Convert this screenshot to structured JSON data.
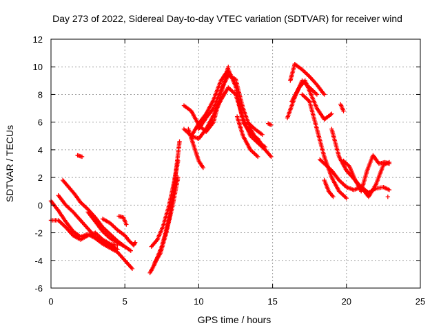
{
  "chart_data": {
    "type": "scatter",
    "title": "Day 273 of 2022, Sidereal Day-to-day VTEC variation (SDTVAR) for receiver wind",
    "xlabel": "GPS time / hours",
    "ylabel": "SDTVAR / TECUs",
    "xlim": [
      0,
      25
    ],
    "ylim": [
      -6,
      12
    ],
    "xticks": [
      0,
      5,
      10,
      15,
      20,
      25
    ],
    "yticks": [
      -6,
      -4,
      -2,
      0,
      2,
      4,
      6,
      8,
      10,
      12
    ],
    "grid": true,
    "marker": "+",
    "color": "#ff0000",
    "series": [
      {
        "name": "trace-1",
        "x": [
          0.0,
          0.5,
          1.0,
          1.5,
          2.0,
          2.5,
          3.0,
          3.5,
          4.0,
          4.5,
          5.0,
          5.5
        ],
        "y": [
          0.3,
          -0.4,
          -1.2,
          -1.9,
          -2.3,
          -2.1,
          -2.4,
          -2.8,
          -3.1,
          -3.4,
          -4.0,
          -4.6
        ]
      },
      {
        "name": "trace-2",
        "x": [
          0.0,
          0.5,
          1.0,
          1.5,
          2.0,
          2.5,
          3.0,
          3.5,
          4.0,
          4.5
        ],
        "y": [
          -1.1,
          -1.1,
          -1.6,
          -2.2,
          -2.5,
          -2.2,
          -2.0,
          -2.5,
          -2.8,
          -2.9
        ]
      },
      {
        "name": "trace-3",
        "x": [
          0.8,
          1.2,
          1.6,
          2.0,
          2.5,
          3.0,
          3.5,
          4.0,
          4.5,
          5.0,
          5.4
        ],
        "y": [
          1.8,
          1.3,
          0.8,
          0.2,
          -0.3,
          -0.9,
          -1.6,
          -2.1,
          -2.6,
          -3.0,
          -3.3
        ]
      },
      {
        "name": "trace-4",
        "x": [
          0.5,
          1.0,
          1.5,
          2.0,
          2.5,
          3.0,
          3.5,
          4.0,
          4.5
        ],
        "y": [
          0.7,
          0.0,
          -0.5,
          -1.1,
          -1.7,
          -2.3,
          -2.6,
          -2.9,
          -3.2
        ]
      },
      {
        "name": "trace-5",
        "x": [
          2.5,
          3.0,
          3.5,
          4.0,
          4.5,
          5.0
        ],
        "y": [
          -0.5,
          -1.2,
          -1.9,
          -2.4,
          -2.7,
          -3.0
        ]
      },
      {
        "name": "trace-6",
        "x": [
          3.5,
          4.0,
          4.5,
          5.0,
          5.3
        ],
        "y": [
          -1.0,
          -1.3,
          -1.8,
          -2.2,
          -2.6
        ]
      },
      {
        "name": "trace-7",
        "x": [
          4.6,
          4.9,
          5.1
        ],
        "y": [
          -0.8,
          -0.9,
          -1.4
        ]
      },
      {
        "name": "trace-8",
        "x": [
          1.8,
          2.1
        ],
        "y": [
          3.6,
          3.5
        ]
      },
      {
        "name": "trace-9",
        "x": [
          5.3,
          5.6,
          5.7
        ],
        "y": [
          -2.6,
          -2.9,
          -2.7
        ]
      },
      {
        "name": "trace-10",
        "x": [
          6.7,
          7.0,
          7.5,
          8.0,
          8.3,
          8.5,
          8.7
        ],
        "y": [
          -4.9,
          -4.3,
          -3.0,
          -1.0,
          1.0,
          2.8,
          4.6
        ]
      },
      {
        "name": "trace-11",
        "x": [
          6.8,
          7.2,
          7.6,
          8.0,
          8.3,
          8.6
        ],
        "y": [
          -3.0,
          -2.5,
          -1.5,
          0.0,
          1.5,
          3.2
        ]
      },
      {
        "name": "trace-12",
        "x": [
          7.0,
          7.4,
          7.8,
          8.2,
          8.6
        ],
        "y": [
          -4.2,
          -3.5,
          -2.0,
          -0.2,
          2.0
        ]
      },
      {
        "name": "trace-13",
        "x": [
          9.0,
          9.5,
          10.0,
          10.5,
          11.0,
          11.5,
          12.0,
          12.5,
          13.0,
          13.5,
          14.0,
          14.5,
          14.9
        ],
        "y": [
          5.5,
          5.0,
          4.8,
          5.5,
          6.5,
          7.6,
          8.5,
          8.0,
          6.3,
          5.0,
          4.5,
          4.0,
          3.5
        ]
      },
      {
        "name": "trace-14",
        "x": [
          9.0,
          9.5,
          10.0,
          10.5,
          11.0,
          11.5,
          12.0
        ],
        "y": [
          7.2,
          6.8,
          5.8,
          5.3,
          6.0,
          8.0,
          10.0
        ]
      },
      {
        "name": "trace-15",
        "x": [
          9.3,
          9.6,
          10.0,
          10.3
        ],
        "y": [
          5.5,
          4.5,
          3.2,
          2.7
        ]
      },
      {
        "name": "trace-16",
        "x": [
          10.0,
          10.5,
          11.0,
          11.5,
          12.0,
          12.5,
          13.0,
          13.5,
          14.0,
          14.5
        ],
        "y": [
          5.5,
          6.3,
          7.0,
          8.3,
          9.4,
          9.1,
          7.0,
          5.5,
          4.6,
          4.2
        ]
      },
      {
        "name": "trace-17",
        "x": [
          9.5,
          10.0,
          10.5,
          11.0,
          11.5,
          12.0,
          12.5,
          13.0,
          13.5,
          14.0,
          14.5
        ],
        "y": [
          5.0,
          5.9,
          6.6,
          7.6,
          9.0,
          9.8,
          8.6,
          6.0,
          5.2,
          4.8,
          4.0
        ]
      },
      {
        "name": "trace-18",
        "x": [
          12.6,
          13.0,
          13.5,
          14.0
        ],
        "y": [
          6.4,
          5.0,
          4.0,
          3.5
        ]
      },
      {
        "name": "trace-19",
        "x": [
          13.3,
          13.8,
          14.3
        ],
        "y": [
          6.0,
          5.5,
          5.1
        ]
      },
      {
        "name": "trace-20",
        "x": [
          14.7,
          14.9
        ],
        "y": [
          5.9,
          5.8
        ]
      },
      {
        "name": "trace-21",
        "x": [
          16.0,
          16.5,
          17.0,
          17.5,
          18.0
        ],
        "y": [
          6.3,
          7.8,
          9.0,
          8.5,
          8.0
        ]
      },
      {
        "name": "trace-22",
        "x": [
          16.2,
          16.5,
          17.0,
          17.5,
          18.0,
          18.5
        ],
        "y": [
          9.0,
          10.2,
          9.8,
          9.3,
          8.7,
          8.0
        ]
      },
      {
        "name": "trace-23",
        "x": [
          16.3,
          16.8,
          17.2,
          17.6,
          18.0,
          18.5,
          19.0
        ],
        "y": [
          7.5,
          8.5,
          9.0,
          8.0,
          7.0,
          6.2,
          6.6
        ]
      },
      {
        "name": "trace-24",
        "x": [
          17.0,
          17.5,
          18.0,
          18.5,
          19.0,
          19.5,
          20.0
        ],
        "y": [
          8.0,
          7.5,
          5.5,
          3.5,
          2.0,
          1.0,
          0.5
        ]
      },
      {
        "name": "trace-25",
        "x": [
          18.2,
          18.6,
          19.0,
          19.5,
          20.0,
          20.5,
          21.0,
          21.5,
          22.0,
          22.5,
          22.9
        ],
        "y": [
          3.3,
          2.9,
          2.5,
          1.8,
          1.3,
          1.1,
          1.3,
          0.9,
          1.2,
          1.3,
          1.1
        ]
      },
      {
        "name": "trace-26",
        "x": [
          19.0,
          19.5,
          20.0,
          20.5,
          21.0,
          21.5,
          22.0,
          22.5,
          22.9
        ],
        "y": [
          5.5,
          3.5,
          2.5,
          1.9,
          1.3,
          0.6,
          1.5,
          2.9,
          3.1
        ]
      },
      {
        "name": "trace-27",
        "x": [
          19.8,
          20.2,
          20.6,
          21.0,
          21.4,
          21.8,
          22.2,
          22.6,
          22.9
        ],
        "y": [
          3.2,
          2.8,
          1.8,
          1.0,
          2.5,
          3.6,
          3.0,
          3.1,
          3.0
        ]
      },
      {
        "name": "trace-28",
        "x": [
          18.5,
          18.8,
          19.1
        ],
        "y": [
          1.8,
          1.0,
          0.6
        ]
      },
      {
        "name": "trace-29",
        "x": [
          19.6,
          19.8
        ],
        "y": [
          7.3,
          6.8
        ]
      },
      {
        "name": "trace-30",
        "x": [
          22.8
        ],
        "y": [
          0.6
        ]
      }
    ]
  }
}
